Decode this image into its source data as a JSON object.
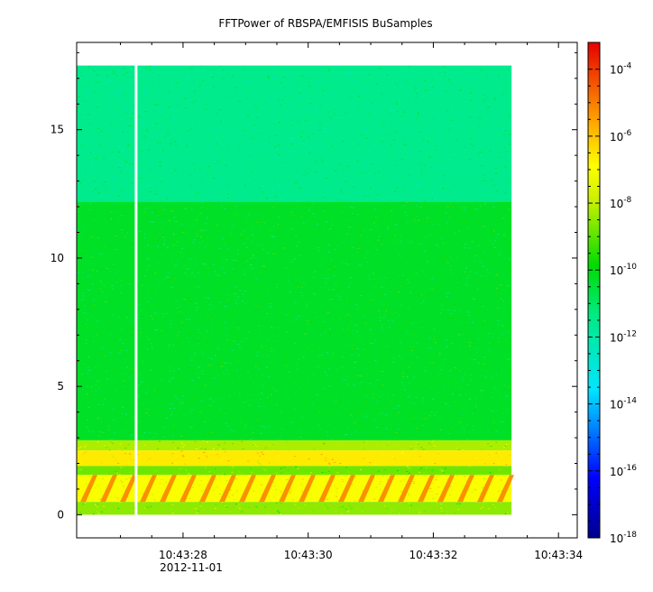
{
  "chart_data": {
    "type": "heatmap",
    "title": "FFTPower of RBSPA/EMFISIS  BuSamples",
    "xlabel": "",
    "ylabel": "",
    "x_tick_labels": [
      "10:43:28",
      "10:43:30",
      "10:43:32",
      "10:43:34"
    ],
    "x_tick_values_sec": [
      28,
      30,
      32,
      34
    ],
    "x_date_label": "2012-11-01",
    "x_range_sec": [
      26.3,
      34.3
    ],
    "data_x_range_sec": [
      26.3,
      33.25
    ],
    "gap_x_sec": 27.25,
    "y_tick_labels": [
      "0",
      "5",
      "10",
      "15"
    ],
    "y_tick_values": [
      0,
      5,
      10,
      15
    ],
    "ylim": [
      -0.9,
      18.4
    ],
    "data_y_range": [
      0,
      17.5
    ],
    "colorbar": {
      "scale": "log",
      "range_exponent": [
        -18,
        -3.2
      ],
      "tick_base": "10",
      "tick_exponents": [
        "-4",
        "-6",
        "-8",
        "-10",
        "-12",
        "-14",
        "-16",
        "-18"
      ],
      "tick_exponent_values": [
        -4,
        -6,
        -8,
        -10,
        -12,
        -14,
        -16,
        -18
      ]
    },
    "bands": [
      {
        "y_from": 12.2,
        "y_to": 17.5,
        "log_power": -11.5
      },
      {
        "y_from": 2.9,
        "y_to": 12.2,
        "log_power": -10.3
      },
      {
        "y_from": 2.5,
        "y_to": 2.9,
        "log_power": -8.2
      },
      {
        "y_from": 1.9,
        "y_to": 2.5,
        "log_power": -6.6
      },
      {
        "y_from": 1.55,
        "y_to": 1.9,
        "log_power": -8.8
      },
      {
        "y_from": 0.5,
        "y_to": 1.55,
        "log_power": -7.0
      },
      {
        "y_from": 0.0,
        "y_to": 0.5,
        "log_power": -8.5
      }
    ]
  }
}
